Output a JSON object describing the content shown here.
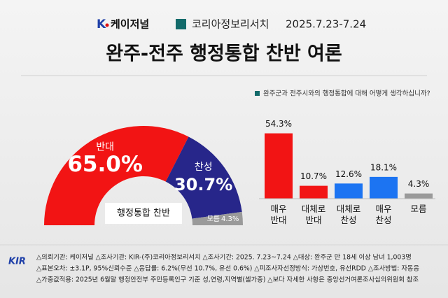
{
  "header": {
    "brand": "케이저널",
    "brand_mark": "K",
    "agency": "코리아정보리서치",
    "period": "2025.7.23-7.24",
    "title": "완주-전주 행정통합 찬반 여론"
  },
  "chart_data": [
    {
      "type": "pie",
      "center_label": "행정통합 찬반",
      "categories": [
        "반대",
        "찬성",
        "모름"
      ],
      "values": [
        65.0,
        30.7,
        4.3
      ],
      "value_labels": [
        "65.0%",
        "30.7%",
        "4.3%"
      ],
      "colors": [
        "#f21414",
        "#27268a",
        "#9a9a9a"
      ]
    },
    {
      "type": "bar",
      "title": "완주군과 전주시와의 행정통합에 대해 어떻게 생각하십니까?",
      "categories": [
        "매우 반대",
        "대체로 반대",
        "대체로 찬성",
        "매우 찬성",
        "모름"
      ],
      "values": [
        54.3,
        10.7,
        12.6,
        18.1,
        4.3
      ],
      "value_labels": [
        "54.3%",
        "10.7%",
        "12.6%",
        "18.1%",
        "4.3%"
      ],
      "colors": [
        "#f21414",
        "#f21414",
        "#1c74f2",
        "#1c74f2",
        "#9a9a9a"
      ]
    }
  ],
  "footer": {
    "logo": "KIR",
    "lines": [
      "△의뢰기관: 케이저널 △조사기관: KIR-(주)코리아정보리서치 △조사기간: 2025. 7.23~7.24 △대상: 완주군 만 18세 이상 남녀 1,003명",
      "△표본오차: ±3.1P, 95%신뢰수준 △응답률: 6.2%(무선 10.7%, 유선 0.6%) △피조사자선정방식: 가상번호, 유선RDD △조사방법: 자동응",
      "△가중값적용: 2025년 6월말 행정안전부 주민등록인구 기준 성,연령,지역별(셀가중) △보다 자세한 사항은 중앙선거여론조사심의위원회 참조"
    ]
  }
}
